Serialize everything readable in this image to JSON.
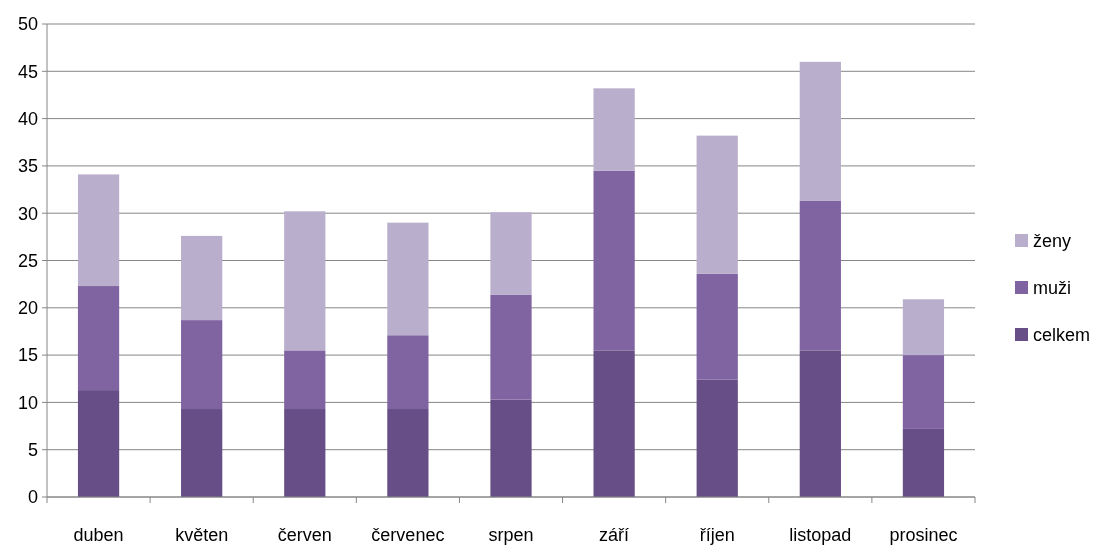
{
  "chart_data": {
    "type": "bar",
    "stacked": true,
    "categories": [
      "duben",
      "květen",
      "červen",
      "červenec",
      "srpen",
      "září",
      "říjen",
      "listopad",
      "prosinec"
    ],
    "series": [
      {
        "name": "celkem",
        "color": "#674e87",
        "values": [
          11.3,
          9.3,
          9.3,
          9.3,
          10.3,
          15.5,
          12.4,
          15.5,
          7.2
        ]
      },
      {
        "name": "muži",
        "color": "#8064a2",
        "values": [
          11.0,
          9.4,
          6.2,
          7.8,
          11.1,
          19.0,
          11.2,
          15.8,
          7.8
        ]
      },
      {
        "name": "ženy",
        "color": "#b9aecb",
        "values": [
          11.8,
          8.9,
          14.7,
          11.9,
          8.7,
          8.7,
          14.6,
          14.7,
          5.9
        ]
      }
    ],
    "ylim": [
      0,
      50
    ],
    "yticks": [
      0,
      5,
      10,
      15,
      20,
      25,
      30,
      35,
      40,
      45,
      50
    ],
    "grid": "y",
    "legend": "right"
  }
}
